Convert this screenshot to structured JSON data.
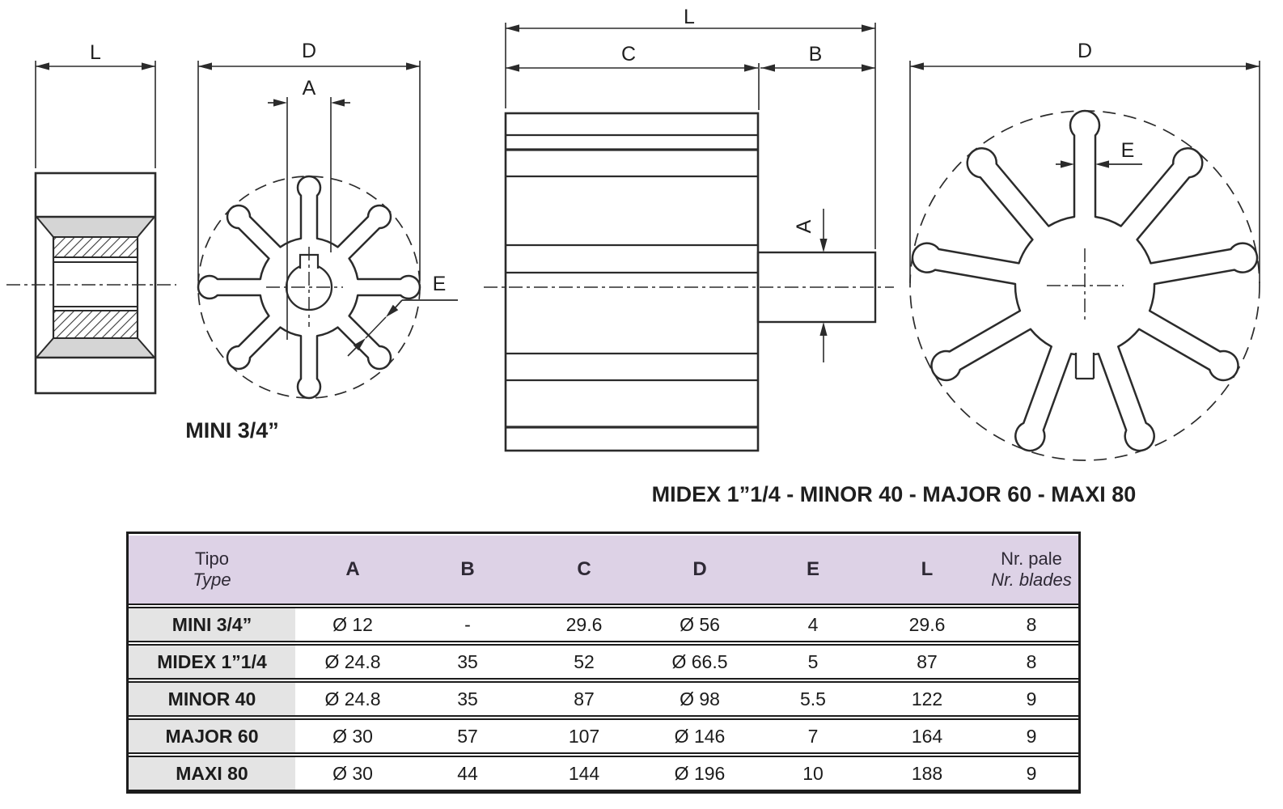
{
  "drawings": {
    "mini_side": {
      "dim_l": "L"
    },
    "mini_front": {
      "dim_d": "D",
      "dim_a": "A",
      "dim_e": "E"
    },
    "mini_caption": "MINI 3/4”",
    "large_side": {
      "dim_l": "L",
      "dim_c": "C",
      "dim_b": "B",
      "dim_a": "A"
    },
    "large_front": {
      "dim_d": "D",
      "dim_e": "E"
    },
    "large_caption": "MIDEX 1”1/4 - MINOR 40 - MAJOR 60 - MAXI 80"
  },
  "table": {
    "header": {
      "type_col_line1": "Tipo",
      "type_col_line2": "Type",
      "dims": [
        "A",
        "B",
        "C",
        "D",
        "E",
        "L"
      ],
      "blades_line1": "Nr. pale",
      "blades_line2": "Nr. blades"
    },
    "rows": [
      {
        "type": "MINI 3/4”",
        "a": "Ø 12",
        "b": "-",
        "c": "29.6",
        "d": "Ø 56",
        "e": "4",
        "l": "29.6",
        "blades": "8"
      },
      {
        "type": "MIDEX 1”1/4",
        "a": "Ø 24.8",
        "b": "35",
        "c": "52",
        "d": "Ø 66.5",
        "e": "5",
        "l": "87",
        "blades": "8"
      },
      {
        "type": "MINOR 40",
        "a": "Ø 24.8",
        "b": "35",
        "c": "87",
        "d": "Ø 98",
        "e": "5.5",
        "l": "122",
        "blades": "9"
      },
      {
        "type": "MAJOR 60",
        "a": "Ø 30",
        "b": "57",
        "c": "107",
        "d": "Ø 146",
        "e": "7",
        "l": "164",
        "blades": "9"
      },
      {
        "type": "MAXI 80",
        "a": "Ø 30",
        "b": "44",
        "c": "144",
        "d": "Ø 196",
        "e": "10",
        "l": "188",
        "blades": "9"
      }
    ]
  },
  "colors": {
    "header_bg": "#ddd2e6",
    "row_label_bg": "#e4e4e4",
    "line": "#2b2b2b"
  }
}
